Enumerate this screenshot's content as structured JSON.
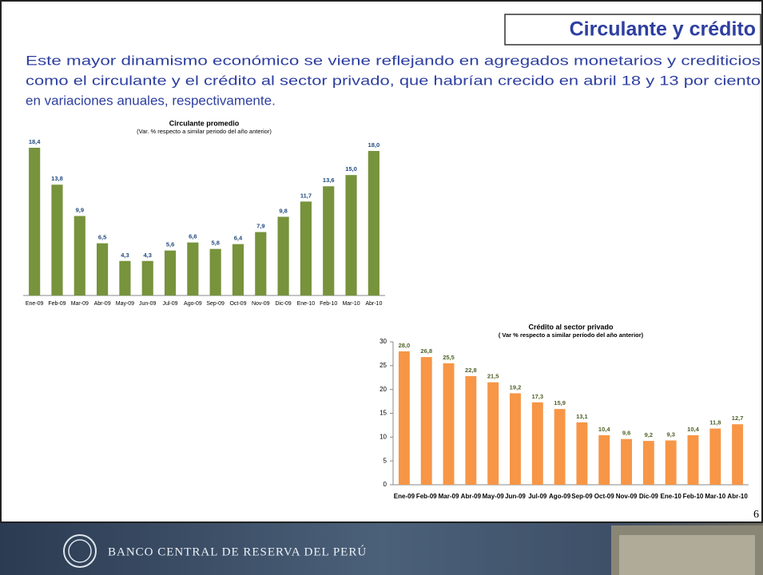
{
  "header": {
    "title": "Circulante y crédito"
  },
  "body": {
    "lines": [
      "Este mayor dinamismo económico se viene reflejando en agregados monetarios y crediticios",
      "como el circulante y el crédito al sector privado, que habrían crecido en abril 18 y 13 por ciento",
      "en variaciones anuales, respectivamente."
    ]
  },
  "chart_data": [
    {
      "type": "bar",
      "title": "Circulante promedio",
      "subtitle": "(Var. % respecto a similar periodo del año anterior)",
      "categories": [
        "Ene-09",
        "Feb-09",
        "Mar-09",
        "Abr-09",
        "May-09",
        "Jun-09",
        "Jul-09",
        "Ago-09",
        "Sep-09",
        "Oct-09",
        "Nov-09",
        "Dic-09",
        "Ene-10",
        "Feb-10",
        "Mar-10",
        "Abr-10"
      ],
      "values": [
        18.4,
        13.8,
        9.9,
        6.5,
        4.3,
        4.3,
        5.6,
        6.6,
        5.8,
        6.4,
        7.9,
        9.8,
        11.7,
        13.6,
        15.0,
        18.0
      ],
      "value_labels": [
        "18,4",
        "13,8",
        "9,9",
        "6,5",
        "4,3",
        "4,3",
        "5,6",
        "6,6",
        "5,8",
        "6,4",
        "7,9",
        "9,8",
        "11,7",
        "13,6",
        "15,0",
        "18,0"
      ],
      "color": "#77933c",
      "label_color": "#1f497d"
    },
    {
      "type": "bar",
      "title": "Crédito  al sector privado",
      "subtitle": "( Var % respecto a similar período del año anterior)",
      "categories": [
        "Ene-09",
        "Feb-09",
        "Mar-09",
        "Abr-09",
        "May-09",
        "Jun-09",
        "Jul-09",
        "Ago-09",
        "Sep-09",
        "Oct-09",
        "Nov-09",
        "Dic-09",
        "Ene-10",
        "Feb-10",
        "Mar-10",
        "Abr-10"
      ],
      "values": [
        28.0,
        26.8,
        25.5,
        22.8,
        21.5,
        19.2,
        17.3,
        15.9,
        13.1,
        10.4,
        9.6,
        9.2,
        9.3,
        10.4,
        11.8,
        12.7
      ],
      "value_labels": [
        "28,0",
        "26,8",
        "25,5",
        "22,8",
        "21,5",
        "19,2",
        "17,3",
        "15,9",
        "13,1",
        "10,4",
        "9,6",
        "9,2",
        "9,3",
        "10,4",
        "11,8",
        "12,7"
      ],
      "color": "#f79646",
      "label_color": "#4f6228",
      "ylim": [
        0,
        30
      ],
      "yticks": [
        0,
        5,
        10,
        15,
        20,
        25,
        30
      ]
    }
  ],
  "page_number": "6",
  "footer": {
    "bank": "BANCO CENTRAL DE RESERVA DEL PERÚ"
  }
}
